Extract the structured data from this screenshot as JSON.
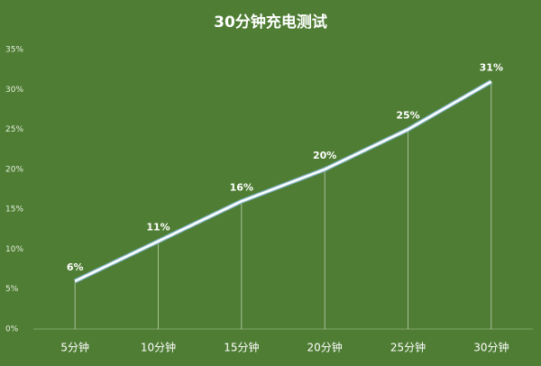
{
  "chart_data": {
    "type": "line",
    "title": "30分钟充电测试",
    "categories": [
      "5分钟",
      "10分钟",
      "15分钟",
      "20分钟",
      "25分钟",
      "30分钟"
    ],
    "series": [
      {
        "color": "#ffffff",
        "values": [
          6,
          11,
          16,
          20,
          25,
          31
        ],
        "value_labels": [
          "6%",
          "11%",
          "16%",
          "20%",
          "25%",
          "31%"
        ]
      }
    ],
    "ylim": [
      0,
      35
    ],
    "yticks": [
      {
        "value": 0,
        "label": "0%"
      },
      {
        "value": 5,
        "label": "5%"
      },
      {
        "value": 10,
        "label": "10%"
      },
      {
        "value": 15,
        "label": "15%"
      },
      {
        "value": 20,
        "label": "20%"
      },
      {
        "value": 25,
        "label": "25%"
      },
      {
        "value": 30,
        "label": "30%"
      },
      {
        "value": 35,
        "label": "35%"
      }
    ],
    "grid": false
  }
}
